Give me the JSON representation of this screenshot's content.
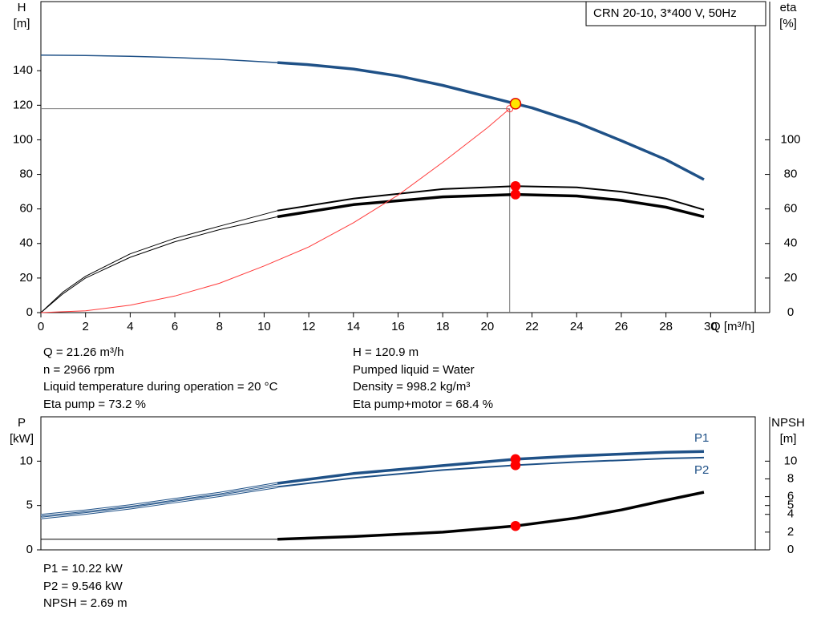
{
  "chart_data": [
    {
      "type": "line",
      "title": "CRN 20-10, 3*400 V, 50Hz",
      "ylabel": "H",
      "yunit": "[m]",
      "y2label": "eta",
      "y2unit": "[%]",
      "xlabel": "Q [m³/h]",
      "xlim": [
        0,
        32
      ],
      "xticks": [
        0,
        2,
        4,
        6,
        8,
        10,
        12,
        14,
        16,
        18,
        20,
        22,
        24,
        26,
        28,
        30
      ],
      "ylim": [
        0,
        180
      ],
      "yticks": [
        0,
        20,
        40,
        60,
        80,
        100,
        120,
        140
      ],
      "y2lim": [
        0,
        180
      ],
      "y2ticks": [
        0,
        20,
        40,
        60,
        80,
        100
      ],
      "series": [
        {
          "color": "#1f5187",
          "width": 1.5,
          "x": [
            0,
            2,
            4,
            6,
            8,
            10.6
          ],
          "values": [
            149,
            148.8,
            148.3,
            147.6,
            146.6,
            144.7
          ]
        },
        {
          "color": "#1f5187",
          "width": 3.5,
          "x": [
            10.6,
            12,
            14,
            16,
            18,
            20,
            21.26,
            22,
            24,
            26,
            28,
            29.7
          ],
          "values": [
            144.7,
            143.5,
            141,
            137,
            131.5,
            125,
            120.9,
            118.5,
            110,
            99.5,
            88.5,
            77
          ]
        },
        {
          "color": "#000000",
          "width": 1,
          "axis": "y2",
          "x": [
            0,
            1,
            2,
            4,
            6,
            8,
            10.6
          ],
          "values": [
            0,
            12,
            21,
            34,
            43,
            50,
            59
          ]
        },
        {
          "color": "#000000",
          "width": 2,
          "axis": "y2",
          "x": [
            10.6,
            14,
            18,
            21.26,
            24,
            26,
            28,
            29.7
          ],
          "values": [
            59,
            66,
            71.5,
            73.2,
            72.5,
            70,
            66,
            59.5
          ]
        },
        {
          "color": "#000000",
          "width": 1,
          "axis": "y2",
          "x": [
            0,
            1,
            2,
            4,
            6,
            8,
            10.6
          ],
          "values": [
            0,
            11,
            20,
            32,
            41,
            48,
            55.5
          ]
        },
        {
          "color": "#000000",
          "width": 3.5,
          "axis": "y2",
          "x": [
            10.6,
            14,
            18,
            21.26,
            24,
            26,
            28,
            29.7
          ],
          "values": [
            55.5,
            62.5,
            67,
            68.4,
            67.5,
            65,
            61,
            55.5
          ]
        },
        {
          "color": "#ff3b3b",
          "width": 1,
          "x": [
            0,
            2,
            4,
            6,
            8,
            10,
            12,
            14,
            16,
            18,
            20,
            21
          ],
          "values": [
            0,
            1,
            4.3,
            9.6,
            17,
            27,
            38,
            52,
            68,
            87,
            107,
            118
          ]
        }
      ],
      "points": [
        {
          "x": 21.26,
          "value": 120.9,
          "color": "#ffe600",
          "stroke": "#e00000"
        },
        {
          "x": 21.26,
          "value": 73.2,
          "axis": "y2",
          "color": "#ff0000",
          "stroke": "#ff0000"
        },
        {
          "x": 21.26,
          "value": 68.4,
          "axis": "y2",
          "color": "#ff0000",
          "stroke": "#ff0000"
        }
      ],
      "reference": {
        "x": 21,
        "value": 118
      }
    },
    {
      "type": "line",
      "ylabel": "P",
      "yunit": "[kW]",
      "y2label": "NPSH",
      "y2unit": "[m]",
      "xlim": [
        0,
        32
      ],
      "ylim": [
        0,
        15
      ],
      "yticks": [
        0,
        5,
        10
      ],
      "y2lim": [
        0,
        15
      ],
      "y2ticks": [
        0,
        2,
        4,
        5,
        6,
        8,
        10
      ],
      "series": [
        {
          "color": "#1f5187",
          "width": 1,
          "double": true,
          "x": [
            0,
            2,
            4,
            6,
            8,
            10.6
          ],
          "values": [
            3.9,
            4.4,
            5.0,
            5.7,
            6.4,
            7.5
          ]
        },
        {
          "name": "P1",
          "label_pos": "above",
          "color": "#1f5187",
          "width": 3.5,
          "x": [
            10.6,
            14,
            18,
            21.26,
            24,
            26,
            28,
            29.7
          ],
          "values": [
            7.5,
            8.6,
            9.5,
            10.22,
            10.6,
            10.8,
            11.0,
            11.1
          ]
        },
        {
          "color": "#1f5187",
          "width": 1,
          "double": true,
          "x": [
            0,
            2,
            4,
            6,
            8,
            10.6
          ],
          "values": [
            3.6,
            4.1,
            4.7,
            5.4,
            6.1,
            7.1
          ]
        },
        {
          "name": "P2",
          "label_pos": "below",
          "color": "#1f5187",
          "width": 2,
          "x": [
            10.6,
            14,
            18,
            21.26,
            24,
            26,
            28,
            29.7
          ],
          "values": [
            7.1,
            8.1,
            9.0,
            9.546,
            9.9,
            10.1,
            10.3,
            10.4
          ]
        },
        {
          "color": "#000000",
          "width": 1,
          "axis": "y2",
          "x": [
            0,
            10.6
          ],
          "values": [
            1.2,
            1.2
          ]
        },
        {
          "color": "#000000",
          "width": 3.5,
          "axis": "y2",
          "x": [
            10.6,
            14,
            18,
            21.26,
            24,
            26,
            28,
            29.7
          ],
          "values": [
            1.2,
            1.5,
            2.0,
            2.69,
            3.6,
            4.5,
            5.6,
            6.5
          ]
        }
      ],
      "points": [
        {
          "x": 21.26,
          "value": 10.22,
          "color": "#ff0000",
          "stroke": "#ff0000"
        },
        {
          "x": 21.26,
          "value": 9.546,
          "color": "#ff0000",
          "stroke": "#ff0000"
        },
        {
          "x": 21.26,
          "value": 2.69,
          "axis": "y2",
          "color": "#ff0000",
          "stroke": "#ff0000"
        }
      ]
    }
  ],
  "info_left": [
    "Q = 21.26 m³/h",
    "n = 2966 rpm",
    "Liquid temperature during operation = 20 °C",
    "Eta pump = 73.2 %"
  ],
  "info_right": [
    "H = 120.9 m",
    "Pumped liquid = Water",
    "Density = 998.2 kg/m³",
    "Eta pump+motor = 68.4 %"
  ],
  "info_bottom": [
    "P1 = 10.22 kW",
    "P2 = 9.546 kW",
    "NPSH = 2.69 m"
  ]
}
